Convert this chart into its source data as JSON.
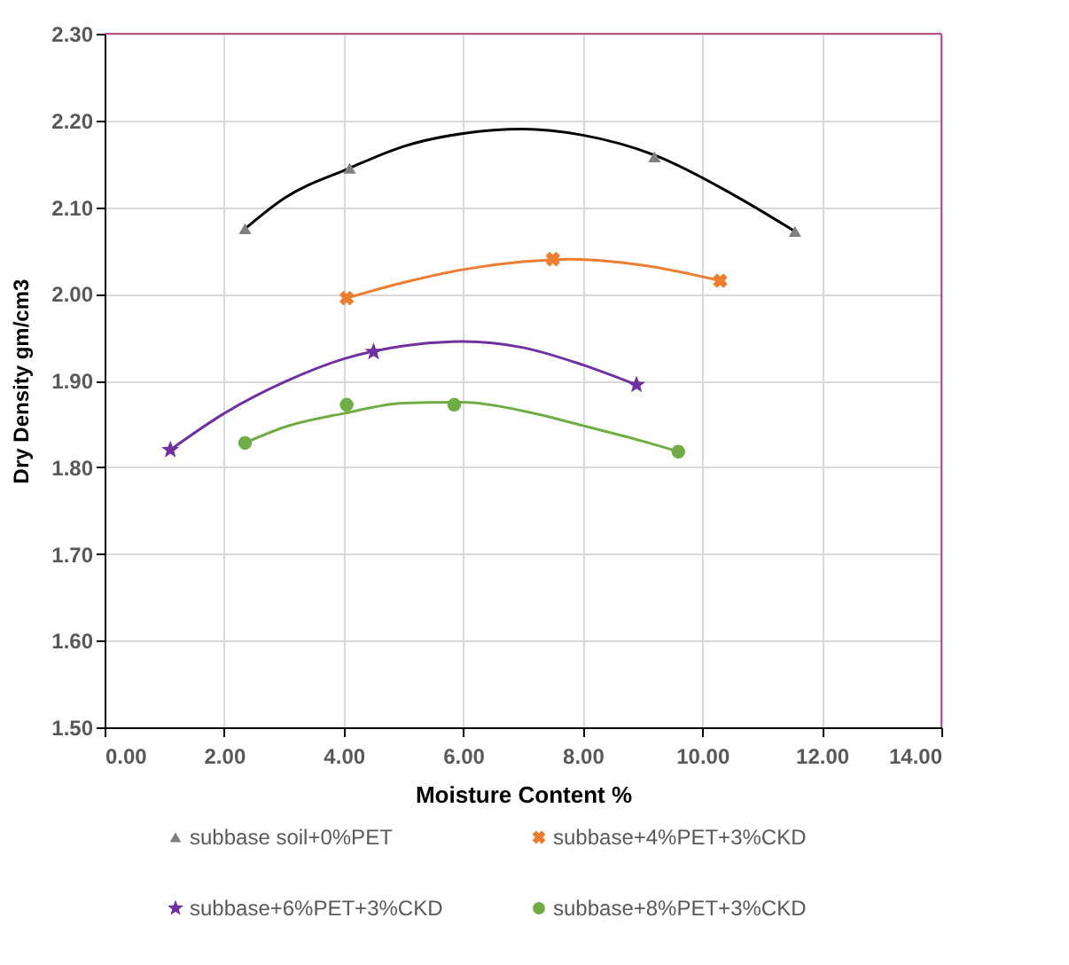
{
  "chart_data": {
    "type": "scatter",
    "xlabel": "Moisture Content %",
    "ylabel": "Dry Density gm/cm3",
    "xlim": [
      0,
      14
    ],
    "ylim": [
      1.5,
      2.3
    ],
    "xticks": [
      {
        "value": 0,
        "label": "0.00"
      },
      {
        "value": 2,
        "label": "2.00"
      },
      {
        "value": 4,
        "label": "4.00"
      },
      {
        "value": 6,
        "label": "6.00"
      },
      {
        "value": 8,
        "label": "8.00"
      },
      {
        "value": 10,
        "label": "10.00"
      },
      {
        "value": 12,
        "label": "12.00"
      },
      {
        "value": 14,
        "label": "14.00"
      }
    ],
    "yticks": [
      {
        "value": 1.5,
        "label": "1.50"
      },
      {
        "value": 1.6,
        "label": "1.60"
      },
      {
        "value": 1.7,
        "label": "1.70"
      },
      {
        "value": 1.8,
        "label": "1.80"
      },
      {
        "value": 1.9,
        "label": "1.90"
      },
      {
        "value": 2.0,
        "label": "2.00"
      },
      {
        "value": 2.1,
        "label": "2.10"
      },
      {
        "value": 2.2,
        "label": "2.20"
      },
      {
        "value": 2.3,
        "label": "2.30"
      }
    ],
    "grid": true,
    "legend": "bottom",
    "series": [
      {
        "type": "line",
        "color": "#000000",
        "line_style": "solid",
        "marker": "none",
        "x": [
          2.35,
          3,
          4.1,
          5,
          6,
          7,
          8,
          9.2,
          10.5,
          11.55
        ],
        "values": [
          2.075,
          2.11,
          2.145,
          2.17,
          2.185,
          2.19,
          2.183,
          2.16,
          2.115,
          2.072
        ]
      },
      {
        "type": "line",
        "color": "#ed7d31",
        "line_style": "solid",
        "marker": "none",
        "x": [
          4.05,
          5,
          6,
          7,
          7.8,
          9,
          10.3
        ],
        "values": [
          1.995,
          2.013,
          2.028,
          2.037,
          2.04,
          2.033,
          2.015
        ]
      },
      {
        "type": "line",
        "color": "#7030a0",
        "line_style": "solid",
        "marker": "none",
        "x": [
          1.1,
          2,
          3,
          4,
          5,
          6,
          7,
          8,
          8.9
        ],
        "values": [
          1.82,
          1.862,
          1.898,
          1.925,
          1.94,
          1.945,
          1.938,
          1.918,
          1.895
        ]
      },
      {
        "type": "line",
        "color": "#70ad47",
        "line_style": "solid",
        "marker": "none",
        "x": [
          2.35,
          3,
          4,
          5,
          6,
          7,
          8,
          9,
          9.6
        ],
        "values": [
          1.828,
          1.846,
          1.862,
          1.874,
          1.875,
          1.865,
          1.848,
          1.83,
          1.818
        ]
      },
      {
        "type": "scatter",
        "name": "subbase soil+0%PET",
        "color": "#808080",
        "marker": "triangle",
        "x": [
          2.35,
          4.1,
          9.2,
          11.55
        ],
        "values": [
          2.075,
          2.145,
          2.158,
          2.072
        ]
      },
      {
        "type": "scatter",
        "name": "subbase+4%PET+3%CKD",
        "color": "#ed7d31",
        "marker": "cross",
        "x": [
          4.05,
          7.5,
          10.3
        ],
        "values": [
          1.995,
          2.04,
          2.015
        ]
      },
      {
        "type": "scatter",
        "name": "subbase+6%PET+3%CKD",
        "color": "#7030a0",
        "marker": "star",
        "x": [
          1.1,
          4.5,
          8.9
        ],
        "values": [
          1.82,
          1.933,
          1.895
        ]
      },
      {
        "type": "scatter",
        "name": "subbase+8%PET+3%CKD",
        "color": "#70ad47",
        "marker": "circle",
        "x": [
          2.35,
          4.05,
          5.85,
          9.6
        ],
        "values": [
          1.828,
          1.872,
          1.872,
          1.818
        ]
      }
    ]
  }
}
